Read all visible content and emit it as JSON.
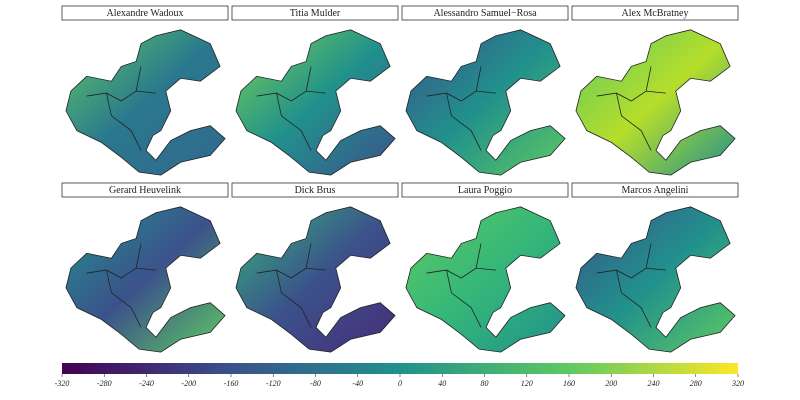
{
  "panels": [
    {
      "title": "Alexandre Wadoux"
    },
    {
      "title": "Titia Mulder"
    },
    {
      "title": "Alessandro Samuel−Rosa"
    },
    {
      "title": "Alex McBratney"
    },
    {
      "title": "Gerard Heuvelink"
    },
    {
      "title": "Dick Brus"
    },
    {
      "title": "Laura Poggio"
    },
    {
      "title": "Marcos Angelini"
    }
  ],
  "colorbar": {
    "lim": [
      -320,
      320
    ],
    "ticks": [
      -320,
      -280,
      -240,
      -200,
      -160,
      -120,
      -80,
      -40,
      0,
      40,
      80,
      120,
      160,
      200,
      240,
      280,
      320
    ]
  }
}
